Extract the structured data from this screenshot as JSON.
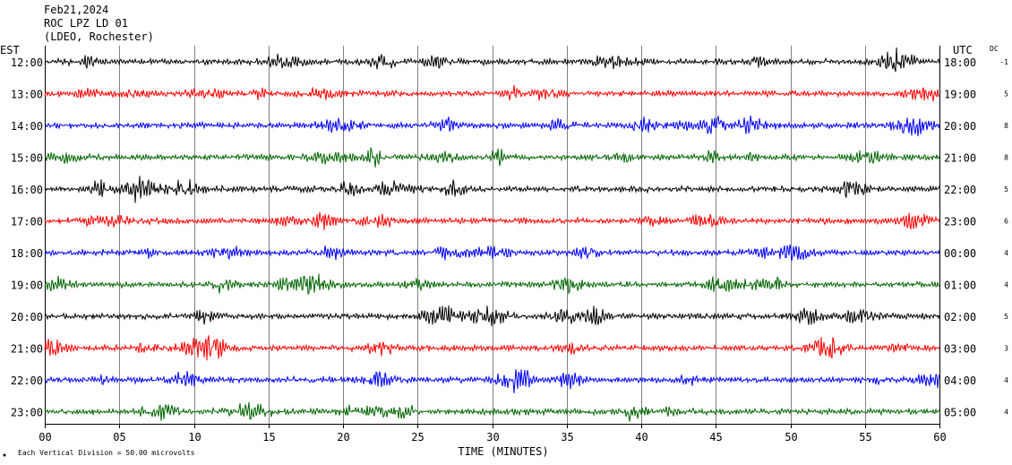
{
  "header": {
    "date": "Feb21,2024",
    "station": "ROC LPZ LD 01",
    "network": "(LDEO, Rochester)"
  },
  "labels": {
    "left_zone": "EST",
    "right_zone": "UTC",
    "dc_header": "DC",
    "x_axis_title": "TIME (MINUTES)",
    "scale_note": "Each Vertical Division =   50.00 microvolts"
  },
  "colors": {
    "black": "#000000",
    "red": "#ff0000",
    "blue": "#0000ff",
    "green": "#006400",
    "grid": "#808080"
  },
  "chart_data": {
    "type": "line",
    "title": "ROC LPZ LD 01",
    "xlabel": "TIME (MINUTES)",
    "ylabel": "",
    "xlim": [
      0,
      60
    ],
    "x_ticks": [
      "00",
      "05",
      "10",
      "15",
      "20",
      "25",
      "30",
      "35",
      "40",
      "45",
      "50",
      "55",
      "60"
    ],
    "grid": true,
    "series": [
      {
        "est": "12:00",
        "utc": "18:00",
        "dc": "-1",
        "color": "black"
      },
      {
        "est": "13:00",
        "utc": "19:00",
        "dc": "5",
        "color": "red"
      },
      {
        "est": "14:00",
        "utc": "20:00",
        "dc": "8",
        "color": "blue"
      },
      {
        "est": "15:00",
        "utc": "21:00",
        "dc": "8",
        "color": "green"
      },
      {
        "est": "16:00",
        "utc": "22:00",
        "dc": "5",
        "color": "black"
      },
      {
        "est": "17:00",
        "utc": "23:00",
        "dc": "6",
        "color": "red"
      },
      {
        "est": "18:00",
        "utc": "00:00",
        "dc": "4",
        "color": "blue"
      },
      {
        "est": "19:00",
        "utc": "01:00",
        "dc": "4",
        "color": "green"
      },
      {
        "est": "20:00",
        "utc": "02:00",
        "dc": "5",
        "color": "black"
      },
      {
        "est": "21:00",
        "utc": "03:00",
        "dc": "3",
        "color": "red"
      },
      {
        "est": "22:00",
        "utc": "04:00",
        "dc": "4",
        "color": "blue"
      },
      {
        "est": "23:00",
        "utc": "05:00",
        "dc": "4",
        "color": "green"
      }
    ]
  }
}
